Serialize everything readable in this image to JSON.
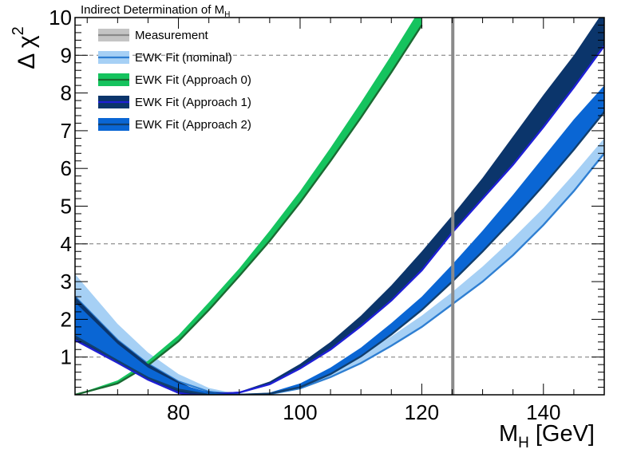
{
  "chart_data": {
    "type": "line",
    "title": "Indirect Determination of M",
    "title_subscript": "H",
    "xlabel": "M",
    "xlabel_subscript": "H",
    "xlabel_unit": "[GeV]",
    "ylabel": "Δ χ",
    "ylabel_superscript": "2",
    "xlim": [
      63,
      150
    ],
    "ylim": [
      0,
      10
    ],
    "x_ticks": [
      80,
      100,
      120,
      140
    ],
    "y_ticks": [
      1,
      2,
      3,
      4,
      5,
      6,
      7,
      8,
      9,
      10
    ],
    "reference_lines_y": [
      1,
      4,
      9
    ],
    "measurement_x": 125.1,
    "legend_position": "top-left",
    "legend": [
      {
        "name": "Measurement",
        "band": "#c4c4c4",
        "line": "#8a8a8a"
      },
      {
        "name": "EWK Fit (nominal)",
        "band": "#a6d0f5",
        "line": "#2f7fd2"
      },
      {
        "name": "EWK Fit (Approach 0)",
        "band": "#15c35e",
        "line": "#1b6a32"
      },
      {
        "name": "EWK Fit (Approach 1)",
        "band": "#0b356b",
        "line": "#1f1fd6"
      },
      {
        "name": "EWK Fit (Approach 2)",
        "band": "#0a66d4",
        "line": "#123f6e"
      }
    ],
    "series": [
      {
        "name": "EWK Fit (nominal)",
        "band": "#a6d0f5",
        "line": "#2f7fd2",
        "x": [
          63,
          70,
          75,
          80,
          85,
          90,
          95,
          100,
          105,
          110,
          115,
          120,
          125,
          130,
          135,
          140,
          145,
          150
        ],
        "upper": [
          3.2,
          1.88,
          1.12,
          0.55,
          0.18,
          0.01,
          0.05,
          0.28,
          0.62,
          1.05,
          1.55,
          2.1,
          2.72,
          3.4,
          4.15,
          4.95,
          5.85,
          6.8
        ],
        "lower": [
          2.6,
          1.45,
          0.82,
          0.35,
          0.08,
          0.0,
          0.02,
          0.17,
          0.47,
          0.84,
          1.3,
          1.8,
          2.4,
          3.0,
          3.7,
          4.5,
          5.4,
          6.4
        ]
      },
      {
        "name": "EWK Fit (Approach 0)",
        "band": "#15c35e",
        "line": "#1b6a32",
        "x": [
          63,
          70,
          75,
          80,
          85,
          90,
          95,
          100,
          105,
          110,
          115,
          120
        ],
        "upper": [
          0.0,
          0.38,
          0.9,
          1.58,
          2.45,
          3.35,
          4.35,
          5.4,
          6.55,
          7.75,
          9.0,
          10.3
        ],
        "lower": [
          0.0,
          0.3,
          0.78,
          1.42,
          2.25,
          3.15,
          4.08,
          5.1,
          6.2,
          7.35,
          8.55,
          9.8
        ]
      },
      {
        "name": "EWK Fit (Approach 1)",
        "band": "#0b356b",
        "line": "#1f1fd6",
        "x": [
          63,
          70,
          75,
          80,
          82,
          84,
          86,
          90,
          95,
          100,
          105,
          110,
          115,
          120,
          125,
          130,
          135,
          140,
          145,
          150
        ],
        "upper": [
          2.6,
          1.45,
          0.82,
          0.35,
          0.2,
          0.1,
          0.06,
          0.08,
          0.35,
          0.82,
          1.4,
          2.1,
          2.9,
          3.8,
          4.75,
          5.75,
          6.85,
          7.95,
          9.0,
          10.2
        ],
        "lower": [
          1.45,
          0.85,
          0.4,
          0.05,
          0.0,
          0.0,
          0.02,
          0.06,
          0.28,
          0.7,
          1.2,
          1.82,
          2.5,
          3.3,
          4.3,
          5.2,
          6.1,
          7.1,
          8.15,
          9.25
        ]
      },
      {
        "name": "EWK Fit (Approach 2)",
        "band": "#0a66d4",
        "line": "#123f6e",
        "x": [
          63,
          70,
          75,
          80,
          85,
          90,
          95,
          100,
          105,
          110,
          115,
          120,
          125,
          130,
          135,
          140,
          145,
          150
        ],
        "upper": [
          2.45,
          1.35,
          0.72,
          0.3,
          0.06,
          0.0,
          0.06,
          0.3,
          0.72,
          1.25,
          1.9,
          2.6,
          3.45,
          4.35,
          5.3,
          6.3,
          7.3,
          8.2
        ],
        "lower": [
          1.55,
          0.9,
          0.45,
          0.14,
          0.0,
          0.0,
          0.03,
          0.2,
          0.55,
          1.02,
          1.6,
          2.25,
          3.0,
          3.8,
          4.65,
          5.55,
          6.5,
          7.5
        ]
      }
    ]
  }
}
